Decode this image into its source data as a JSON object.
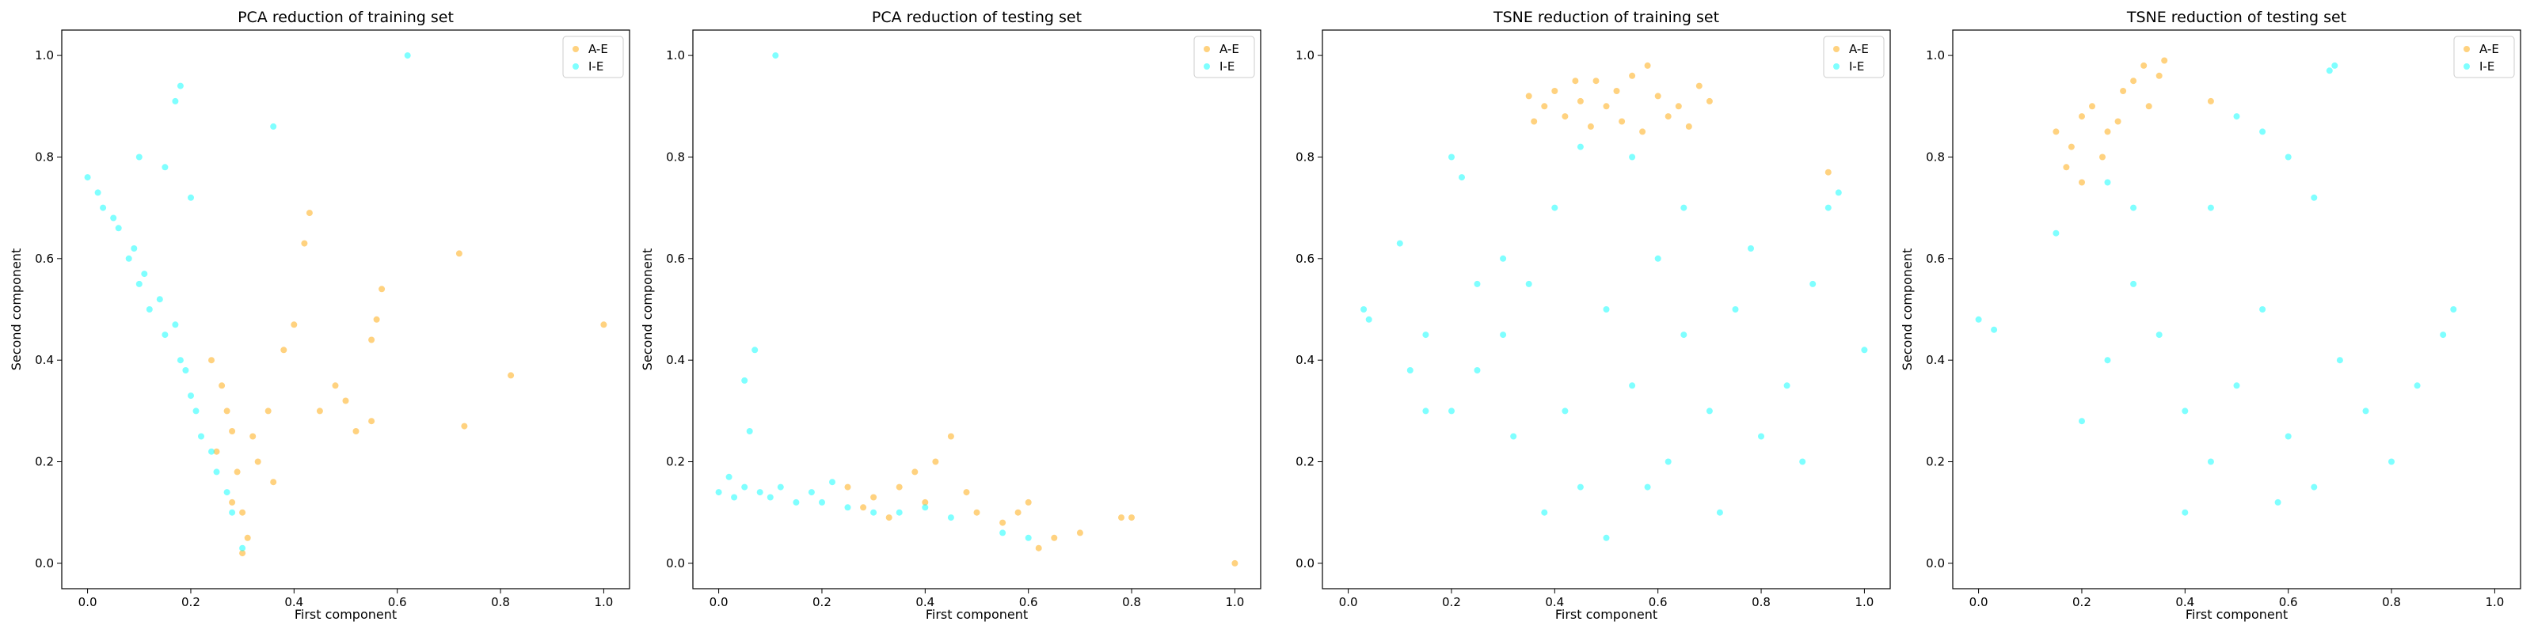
{
  "chart_data": [
    {
      "type": "scatter",
      "title": "PCA reduction of training set",
      "xlabel": "First component",
      "ylabel": "Second component",
      "xlim": [
        -0.05,
        1.05
      ],
      "ylim": [
        -0.05,
        1.05
      ],
      "xticks": [
        "0.0",
        "0.2",
        "0.4",
        "0.6",
        "0.8",
        "1.0"
      ],
      "yticks": [
        "0.0",
        "0.2",
        "0.4",
        "0.6",
        "0.8",
        "1.0"
      ],
      "grid": false,
      "legend_position": "top-right",
      "series": [
        {
          "name": "A-E",
          "color": "#FFA500",
          "points": [
            [
              0.3,
              0.1
            ],
            [
              0.29,
              0.18
            ],
            [
              0.27,
              0.3
            ],
            [
              0.25,
              0.22
            ],
            [
              0.31,
              0.05
            ],
            [
              0.28,
              0.12
            ],
            [
              0.26,
              0.35
            ],
            [
              0.32,
              0.25
            ],
            [
              0.24,
              0.4
            ],
            [
              0.3,
              0.02
            ],
            [
              0.35,
              0.3
            ],
            [
              0.38,
              0.42
            ],
            [
              0.4,
              0.47
            ],
            [
              0.42,
              0.63
            ],
            [
              0.43,
              0.69
            ],
            [
              0.5,
              0.32
            ],
            [
              0.52,
              0.26
            ],
            [
              0.55,
              0.28
            ],
            [
              0.57,
              0.54
            ],
            [
              0.55,
              0.44
            ],
            [
              0.56,
              0.48
            ],
            [
              0.72,
              0.61
            ],
            [
              0.73,
              0.27
            ],
            [
              0.82,
              0.37
            ],
            [
              1.0,
              0.47
            ],
            [
              0.45,
              0.3
            ],
            [
              0.48,
              0.35
            ],
            [
              0.33,
              0.2
            ],
            [
              0.36,
              0.16
            ],
            [
              0.28,
              0.26
            ]
          ]
        },
        {
          "name": "I-E",
          "color": "#00FFFF",
          "points": [
            [
              0.0,
              0.76
            ],
            [
              0.02,
              0.73
            ],
            [
              0.05,
              0.68
            ],
            [
              0.08,
              0.6
            ],
            [
              0.1,
              0.55
            ],
            [
              0.12,
              0.5
            ],
            [
              0.15,
              0.45
            ],
            [
              0.18,
              0.4
            ],
            [
              0.2,
              0.33
            ],
            [
              0.22,
              0.25
            ],
            [
              0.25,
              0.18
            ],
            [
              0.28,
              0.1
            ],
            [
              0.3,
              0.03
            ],
            [
              0.03,
              0.7
            ],
            [
              0.06,
              0.66
            ],
            [
              0.09,
              0.62
            ],
            [
              0.11,
              0.57
            ],
            [
              0.14,
              0.52
            ],
            [
              0.17,
              0.47
            ],
            [
              0.19,
              0.38
            ],
            [
              0.21,
              0.3
            ],
            [
              0.24,
              0.22
            ],
            [
              0.27,
              0.14
            ],
            [
              0.18,
              0.94
            ],
            [
              0.17,
              0.91
            ],
            [
              0.36,
              0.86
            ],
            [
              0.62,
              1.0
            ],
            [
              0.15,
              0.78
            ],
            [
              0.2,
              0.72
            ],
            [
              0.1,
              0.8
            ]
          ]
        }
      ]
    },
    {
      "type": "scatter",
      "title": "PCA reduction of testing set",
      "xlabel": "First component",
      "ylabel": "Second component",
      "xlim": [
        -0.05,
        1.05
      ],
      "ylim": [
        -0.05,
        1.05
      ],
      "xticks": [
        "0.0",
        "0.2",
        "0.4",
        "0.6",
        "0.8",
        "1.0"
      ],
      "yticks": [
        "0.0",
        "0.2",
        "0.4",
        "0.6",
        "0.8",
        "1.0"
      ],
      "grid": false,
      "legend_position": "top-right",
      "series": [
        {
          "name": "A-E",
          "color": "#FFA500",
          "points": [
            [
              0.25,
              0.15
            ],
            [
              0.3,
              0.13
            ],
            [
              0.35,
              0.15
            ],
            [
              0.4,
              0.12
            ],
            [
              0.42,
              0.2
            ],
            [
              0.45,
              0.25
            ],
            [
              0.5,
              0.1
            ],
            [
              0.55,
              0.08
            ],
            [
              0.6,
              0.12
            ],
            [
              0.65,
              0.05
            ],
            [
              0.7,
              0.06
            ],
            [
              0.78,
              0.09
            ],
            [
              0.8,
              0.09
            ],
            [
              1.0,
              0.0
            ],
            [
              0.38,
              0.18
            ],
            [
              0.33,
              0.09
            ],
            [
              0.48,
              0.14
            ],
            [
              0.58,
              0.1
            ],
            [
              0.62,
              0.03
            ],
            [
              0.28,
              0.11
            ]
          ]
        },
        {
          "name": "I-E",
          "color": "#00FFFF",
          "points": [
            [
              0.0,
              0.14
            ],
            [
              0.03,
              0.13
            ],
            [
              0.05,
              0.15
            ],
            [
              0.08,
              0.14
            ],
            [
              0.1,
              0.13
            ],
            [
              0.12,
              0.15
            ],
            [
              0.15,
              0.12
            ],
            [
              0.18,
              0.14
            ],
            [
              0.2,
              0.12
            ],
            [
              0.25,
              0.11
            ],
            [
              0.3,
              0.1
            ],
            [
              0.35,
              0.1
            ],
            [
              0.4,
              0.11
            ],
            [
              0.45,
              0.09
            ],
            [
              0.55,
              0.06
            ],
            [
              0.6,
              0.05
            ],
            [
              0.07,
              0.42
            ],
            [
              0.05,
              0.36
            ],
            [
              0.06,
              0.26
            ],
            [
              0.11,
              1.0
            ],
            [
              0.02,
              0.17
            ],
            [
              0.22,
              0.16
            ]
          ]
        }
      ]
    },
    {
      "type": "scatter",
      "title": "TSNE reduction of training set",
      "xlabel": "First component",
      "ylabel": "",
      "xlim": [
        -0.05,
        1.05
      ],
      "ylim": [
        -0.05,
        1.05
      ],
      "xticks": [
        "0.0",
        "0.2",
        "0.4",
        "0.6",
        "0.8",
        "1.0"
      ],
      "yticks": [
        "0.0",
        "0.2",
        "0.4",
        "0.6",
        "0.8",
        "1.0"
      ],
      "grid": false,
      "legend_position": "top-right",
      "series": [
        {
          "name": "A-E",
          "color": "#FFA500",
          "points": [
            [
              0.35,
              0.92
            ],
            [
              0.38,
              0.9
            ],
            [
              0.4,
              0.93
            ],
            [
              0.42,
              0.88
            ],
            [
              0.45,
              0.91
            ],
            [
              0.48,
              0.95
            ],
            [
              0.5,
              0.9
            ],
            [
              0.52,
              0.93
            ],
            [
              0.55,
              0.96
            ],
            [
              0.58,
              0.98
            ],
            [
              0.6,
              0.92
            ],
            [
              0.62,
              0.88
            ],
            [
              0.64,
              0.9
            ],
            [
              0.66,
              0.86
            ],
            [
              0.68,
              0.94
            ],
            [
              0.57,
              0.85
            ],
            [
              0.53,
              0.87
            ],
            [
              0.44,
              0.95
            ],
            [
              0.47,
              0.86
            ],
            [
              0.36,
              0.87
            ],
            [
              0.93,
              0.77
            ],
            [
              0.7,
              0.91
            ]
          ]
        },
        {
          "name": "I-E",
          "color": "#00FFFF",
          "points": [
            [
              0.03,
              0.5
            ],
            [
              0.04,
              0.48
            ],
            [
              0.1,
              0.63
            ],
            [
              0.2,
              0.8
            ],
            [
              0.22,
              0.76
            ],
            [
              0.15,
              0.45
            ],
            [
              0.2,
              0.3
            ],
            [
              0.25,
              0.38
            ],
            [
              0.3,
              0.45
            ],
            [
              0.32,
              0.25
            ],
            [
              0.35,
              0.55
            ],
            [
              0.4,
              0.7
            ],
            [
              0.42,
              0.3
            ],
            [
              0.45,
              0.15
            ],
            [
              0.5,
              0.5
            ],
            [
              0.5,
              0.05
            ],
            [
              0.55,
              0.35
            ],
            [
              0.6,
              0.6
            ],
            [
              0.62,
              0.2
            ],
            [
              0.65,
              0.45
            ],
            [
              0.7,
              0.3
            ],
            [
              0.72,
              0.1
            ],
            [
              0.75,
              0.5
            ],
            [
              0.8,
              0.25
            ],
            [
              0.85,
              0.35
            ],
            [
              0.9,
              0.55
            ],
            [
              0.95,
              0.73
            ],
            [
              0.93,
              0.7
            ],
            [
              0.55,
              0.8
            ],
            [
              0.45,
              0.82
            ],
            [
              0.3,
              0.6
            ],
            [
              0.25,
              0.55
            ],
            [
              1.0,
              0.42
            ],
            [
              0.15,
              0.3
            ],
            [
              0.38,
              0.1
            ],
            [
              0.65,
              0.7
            ],
            [
              0.78,
              0.62
            ],
            [
              0.58,
              0.15
            ],
            [
              0.12,
              0.38
            ],
            [
              0.88,
              0.2
            ]
          ]
        }
      ]
    },
    {
      "type": "scatter",
      "title": "TSNE reduction of testing set",
      "xlabel": "First component",
      "ylabel": "Second component",
      "xlim": [
        -0.05,
        1.05
      ],
      "ylim": [
        -0.05,
        1.05
      ],
      "xticks": [
        "0.0",
        "0.2",
        "0.4",
        "0.6",
        "0.8",
        "1.0"
      ],
      "yticks": [
        "0.0",
        "0.2",
        "0.4",
        "0.6",
        "0.8",
        "1.0"
      ],
      "grid": false,
      "legend_position": "top-right",
      "series": [
        {
          "name": "A-E",
          "color": "#FFA500",
          "points": [
            [
              0.15,
              0.85
            ],
            [
              0.18,
              0.82
            ],
            [
              0.2,
              0.88
            ],
            [
              0.22,
              0.9
            ],
            [
              0.25,
              0.85
            ],
            [
              0.28,
              0.93
            ],
            [
              0.3,
              0.95
            ],
            [
              0.32,
              0.98
            ],
            [
              0.35,
              0.96
            ],
            [
              0.33,
              0.9
            ],
            [
              0.17,
              0.78
            ],
            [
              0.24,
              0.8
            ],
            [
              0.27,
              0.87
            ],
            [
              0.36,
              0.99
            ],
            [
              0.2,
              0.75
            ],
            [
              0.45,
              0.91
            ]
          ]
        },
        {
          "name": "I-E",
          "color": "#00FFFF",
          "points": [
            [
              0.0,
              0.48
            ],
            [
              0.03,
              0.46
            ],
            [
              0.2,
              0.28
            ],
            [
              0.25,
              0.4
            ],
            [
              0.3,
              0.55
            ],
            [
              0.35,
              0.45
            ],
            [
              0.4,
              0.3
            ],
            [
              0.45,
              0.2
            ],
            [
              0.5,
              0.35
            ],
            [
              0.55,
              0.5
            ],
            [
              0.6,
              0.25
            ],
            [
              0.65,
              0.15
            ],
            [
              0.7,
              0.4
            ],
            [
              0.75,
              0.3
            ],
            [
              0.8,
              0.2
            ],
            [
              0.85,
              0.35
            ],
            [
              0.9,
              0.45
            ],
            [
              0.92,
              0.5
            ],
            [
              0.68,
              0.97
            ],
            [
              0.69,
              0.98
            ],
            [
              0.6,
              0.8
            ],
            [
              0.55,
              0.85
            ],
            [
              0.5,
              0.88
            ],
            [
              0.45,
              0.7
            ],
            [
              0.3,
              0.7
            ],
            [
              0.25,
              0.75
            ],
            [
              0.15,
              0.65
            ],
            [
              0.65,
              0.72
            ],
            [
              0.4,
              0.1
            ],
            [
              0.58,
              0.12
            ]
          ]
        }
      ]
    }
  ]
}
